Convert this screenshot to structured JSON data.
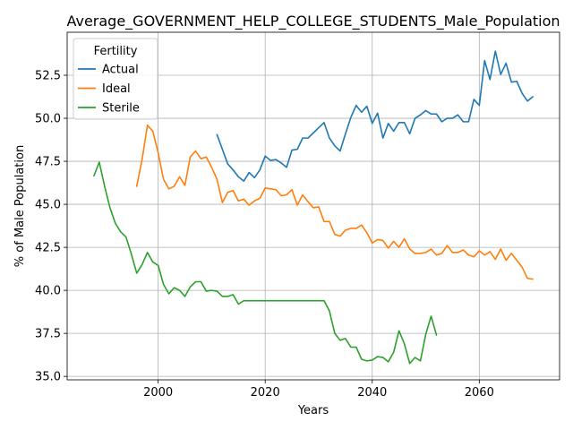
{
  "chart_data": {
    "type": "line",
    "title": "Average_GOVERNMENT_HELP_COLLEGE_STUDENTS_Male_Population",
    "xlabel": "Years",
    "ylabel": "% of Male Population",
    "xlim": [
      1983,
      2075
    ],
    "ylim": [
      34.8,
      55.0
    ],
    "xticks": [
      2000,
      2020,
      2040,
      2060
    ],
    "yticks": [
      35.0,
      37.5,
      40.0,
      42.5,
      45.0,
      47.5,
      50.0,
      52.5
    ],
    "grid": true,
    "legend": {
      "title": "Fertility",
      "placement": "top-left"
    },
    "series": [
      {
        "name": "Actual",
        "color": "#1f77b4",
        "x": [
          2011,
          2012,
          2013,
          2014,
          2015,
          2016,
          2017,
          2018,
          2019,
          2020,
          2021,
          2022,
          2023,
          2024,
          2025,
          2026,
          2027,
          2028,
          2029,
          2030,
          2031,
          2032,
          2033,
          2034,
          2035,
          2036,
          2037,
          2038,
          2039,
          2040,
          2041,
          2042,
          2043,
          2044,
          2045,
          2046,
          2047,
          2048,
          2049,
          2050,
          2051,
          2052,
          2053,
          2054,
          2055,
          2056,
          2057,
          2058,
          2059,
          2060,
          2061,
          2062,
          2063,
          2064,
          2065,
          2066,
          2067,
          2068,
          2069,
          2070
        ],
        "y": [
          49.05,
          48.2,
          47.35,
          47.0,
          46.6,
          46.35,
          46.85,
          46.55,
          47.0,
          47.8,
          47.55,
          47.6,
          47.4,
          47.15,
          48.15,
          48.2,
          48.85,
          48.85,
          49.15,
          49.45,
          49.75,
          48.85,
          48.4,
          48.1,
          49.1,
          50.05,
          50.75,
          50.35,
          50.7,
          49.7,
          50.3,
          48.85,
          49.7,
          49.25,
          49.75,
          49.75,
          49.1,
          50.0,
          50.2,
          50.45,
          50.25,
          50.25,
          49.8,
          50.0,
          50.0,
          50.2,
          49.8,
          49.8,
          51.1,
          50.75,
          53.35,
          52.25,
          53.9,
          52.55,
          53.2,
          52.1,
          52.15,
          51.45,
          51.0,
          51.25
        ]
      },
      {
        "name": "Ideal",
        "color": "#ff7f0e",
        "x": [
          1996,
          1997,
          1998,
          1999,
          2000,
          2001,
          2002,
          2003,
          2004,
          2005,
          2006,
          2007,
          2008,
          2009,
          2010,
          2011,
          2012,
          2013,
          2014,
          2015,
          2016,
          2017,
          2018,
          2019,
          2020,
          2021,
          2022,
          2023,
          2024,
          2025,
          2026,
          2027,
          2028,
          2029,
          2030,
          2031,
          2032,
          2033,
          2034,
          2035,
          2036,
          2037,
          2038,
          2039,
          2040,
          2041,
          2042,
          2043,
          2044,
          2045,
          2046,
          2047,
          2048,
          2049,
          2050,
          2051,
          2052,
          2053,
          2054,
          2055,
          2056,
          2057,
          2058,
          2059,
          2060,
          2061,
          2062,
          2063,
          2064,
          2065,
          2066,
          2067,
          2068,
          2069,
          2070
        ],
        "y": [
          46.05,
          47.6,
          49.6,
          49.25,
          48.0,
          46.45,
          45.9,
          46.05,
          46.6,
          46.1,
          47.75,
          48.1,
          47.65,
          47.75,
          47.15,
          46.45,
          45.1,
          45.7,
          45.8,
          45.2,
          45.3,
          44.95,
          45.2,
          45.35,
          45.95,
          45.9,
          45.85,
          45.5,
          45.55,
          45.85,
          44.95,
          45.55,
          45.15,
          44.8,
          44.85,
          44.0,
          44.0,
          43.25,
          43.15,
          43.5,
          43.6,
          43.6,
          43.8,
          43.35,
          42.75,
          42.95,
          42.9,
          42.45,
          42.85,
          42.5,
          43.0,
          42.4,
          42.15,
          42.15,
          42.2,
          42.4,
          42.05,
          42.15,
          42.6,
          42.2,
          42.2,
          42.35,
          42.05,
          41.95,
          42.3,
          42.05,
          42.25,
          41.8,
          42.4,
          41.75,
          42.15,
          41.75,
          41.35,
          40.7,
          40.65
        ]
      },
      {
        "name": "Sterile",
        "color": "#2ca02c",
        "x": [
          1988,
          1989,
          1990,
          1991,
          1992,
          1993,
          1994,
          1995,
          1996,
          1997,
          1998,
          1999,
          2000,
          2001,
          2002,
          2003,
          2004,
          2005,
          2006,
          2007,
          2008,
          2009,
          2010,
          2011,
          2012,
          2013,
          2014,
          2015,
          2016,
          2017,
          2018,
          2019,
          2020,
          2021,
          2022,
          2023,
          2024,
          2025,
          2026,
          2027,
          2028,
          2029,
          2030,
          2031,
          2032,
          2033,
          2034,
          2035,
          2036,
          2037,
          2038,
          2039,
          2040,
          2041,
          2042,
          2043,
          2044,
          2045,
          2046,
          2047,
          2048,
          2049,
          2050,
          2051,
          2052
        ],
        "y": [
          46.65,
          47.45,
          46.05,
          44.8,
          43.9,
          43.4,
          43.1,
          42.1,
          41.0,
          41.5,
          42.2,
          41.65,
          41.45,
          40.35,
          39.8,
          40.15,
          40.0,
          39.65,
          40.2,
          40.5,
          40.5,
          39.95,
          40.0,
          39.95,
          39.65,
          39.65,
          39.75,
          39.2,
          39.4,
          39.4,
          39.4,
          39.4,
          39.4,
          39.4,
          39.4,
          39.4,
          39.4,
          39.4,
          39.4,
          39.4,
          39.4,
          39.4,
          39.4,
          39.4,
          38.8,
          37.5,
          37.1,
          37.2,
          36.7,
          36.7,
          36.0,
          35.9,
          35.95,
          36.15,
          36.1,
          35.85,
          36.4,
          37.65,
          36.9,
          35.75,
          36.1,
          35.9,
          37.45,
          38.5,
          37.4
        ]
      }
    ]
  }
}
